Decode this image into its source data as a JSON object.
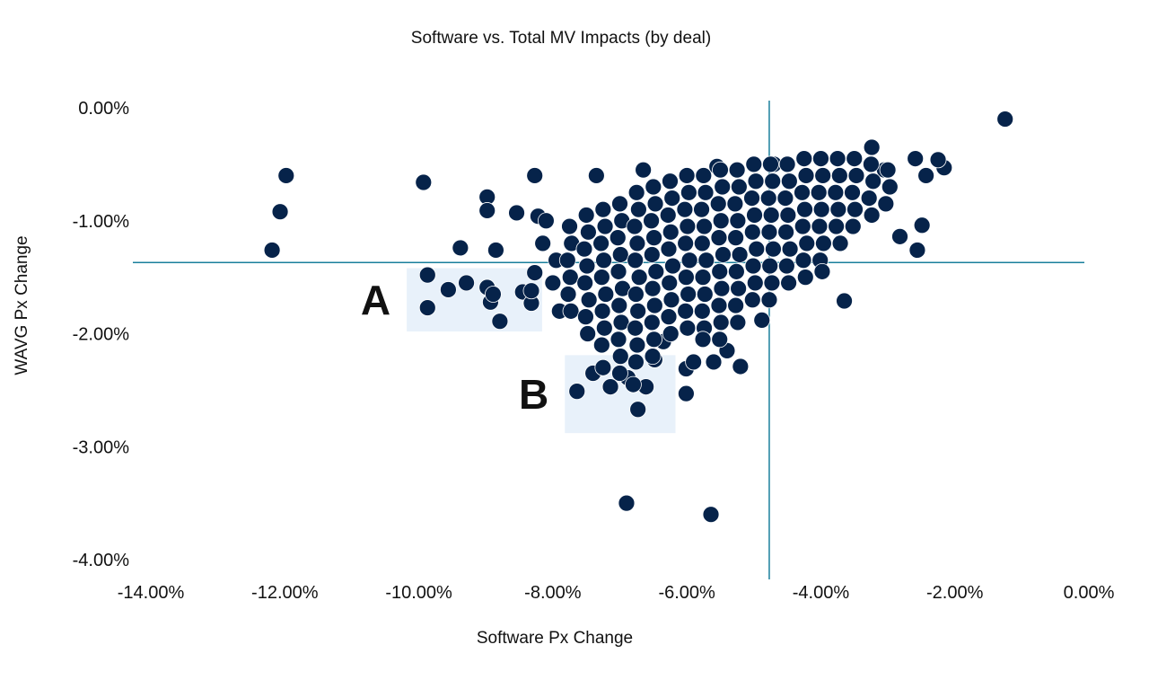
{
  "chart_data": {
    "type": "scatter",
    "title": "Software vs. Total MV Impacts (by deal)",
    "xlabel": "Software Px Change",
    "ylabel": "WAVG Px Change",
    "xlim": [
      -14,
      0
    ],
    "ylim": [
      -4,
      0
    ],
    "x_ticks": [
      "-14.00%",
      "-12.00%",
      "-10.00%",
      "-8.00%",
      "-6.00%",
      "-4.00%",
      "-2.00%",
      "0.00%"
    ],
    "x_tick_values": [
      -14,
      -12,
      -10,
      -8,
      -6,
      -4,
      -2,
      0
    ],
    "y_ticks": [
      "0.00%",
      "-1.00%",
      "-2.00%",
      "-3.00%",
      "-4.00%"
    ],
    "y_tick_values": [
      0,
      -1,
      -2,
      -3,
      -4
    ],
    "grid": false,
    "reference_lines": {
      "x": -4.77,
      "y": -1.37
    },
    "highlight_boxes": [
      {
        "label": "A",
        "x_range": [
          -10.18,
          -8.16
        ],
        "y_range": [
          -1.98,
          -1.42
        ]
      },
      {
        "label": "B",
        "x_range": [
          -7.82,
          -6.17
        ],
        "y_range": [
          -2.88,
          -2.19
        ]
      }
    ],
    "colors": {
      "points": "#06234a",
      "point_outline": "#ffffff",
      "reference_lines": "#1a7f9c",
      "boxes": "#e8f1fa"
    },
    "points": [
      [
        -11.98,
        -0.6
      ],
      [
        -12.07,
        -0.92
      ],
      [
        -12.19,
        -1.26
      ],
      [
        -9.93,
        -0.66
      ],
      [
        -9.87,
        -1.48
      ],
      [
        -9.87,
        -1.77
      ],
      [
        -9.56,
        -1.61
      ],
      [
        -9.38,
        -1.24
      ],
      [
        -9.29,
        -1.55
      ],
      [
        -8.98,
        -0.79
      ],
      [
        -8.98,
        -0.91
      ],
      [
        -8.98,
        -1.59
      ],
      [
        -8.93,
        -1.72
      ],
      [
        -8.89,
        -1.65
      ],
      [
        -8.85,
        -1.26
      ],
      [
        -8.79,
        -1.89
      ],
      [
        -8.54,
        -0.93
      ],
      [
        -8.45,
        -1.63
      ],
      [
        -8.32,
        -1.73
      ],
      [
        -8.32,
        -1.62
      ],
      [
        -8.27,
        -0.6
      ],
      [
        -8.22,
        -0.96
      ],
      [
        -8.27,
        -1.46
      ],
      [
        -7.64,
        -2.51
      ],
      [
        -6.9,
        -3.5
      ],
      [
        -5.64,
        -3.6
      ],
      [
        -6.73,
        -2.67
      ],
      [
        -1.25,
        -0.1
      ],
      [
        -3.65,
        -1.71
      ],
      [
        -4.88,
        -1.88
      ],
      [
        -2.56,
        -1.26
      ],
      [
        -2.49,
        -1.04
      ],
      [
        -2.82,
        -1.14
      ],
      [
        -2.16,
        -0.53
      ],
      [
        -2.25,
        -0.46
      ],
      [
        -2.43,
        -0.6
      ],
      [
        -2.59,
        -0.45
      ],
      [
        -3.24,
        -0.35
      ],
      [
        -5.2,
        -2.29
      ],
      [
        -6.01,
        -2.53
      ],
      [
        -6.01,
        -2.31
      ],
      [
        -7.4,
        -2.35
      ],
      [
        -7.14,
        -2.47
      ],
      [
        -6.88,
        -2.39
      ],
      [
        -6.61,
        -2.47
      ],
      [
        -6.48,
        -2.23
      ],
      [
        -6.35,
        -2.07
      ],
      [
        -8.1,
        -1.0
      ],
      [
        -7.95,
        -1.35
      ],
      [
        -8.0,
        -1.55
      ],
      [
        -7.9,
        -1.8
      ],
      [
        -8.15,
        -1.2
      ],
      [
        -7.0,
        -2.35
      ],
      [
        -6.8,
        -2.45
      ],
      [
        -7.25,
        -2.3
      ],
      [
        -5.9,
        -2.25
      ],
      [
        -5.6,
        -2.25
      ],
      [
        -5.4,
        -2.15
      ],
      [
        -7.35,
        -0.6
      ],
      [
        -6.65,
        -0.55
      ],
      [
        -5.55,
        -0.52
      ],
      [
        -4.7,
        -0.5
      ],
      [
        -3.05,
        -0.55
      ],
      [
        -7.75,
        -1.05
      ],
      [
        -7.72,
        -1.2
      ],
      [
        -7.78,
        -1.35
      ],
      [
        -7.74,
        -1.5
      ],
      [
        -7.77,
        -1.65
      ],
      [
        -7.73,
        -1.8
      ],
      [
        -7.5,
        -0.95
      ],
      [
        -7.47,
        -1.1
      ],
      [
        -7.53,
        -1.25
      ],
      [
        -7.49,
        -1.4
      ],
      [
        -7.52,
        -1.55
      ],
      [
        -7.46,
        -1.7
      ],
      [
        -7.51,
        -1.85
      ],
      [
        -7.48,
        -2.0
      ],
      [
        -7.25,
        -0.9
      ],
      [
        -7.22,
        -1.05
      ],
      [
        -7.28,
        -1.2
      ],
      [
        -7.24,
        -1.35
      ],
      [
        -7.27,
        -1.5
      ],
      [
        -7.21,
        -1.65
      ],
      [
        -7.26,
        -1.8
      ],
      [
        -7.23,
        -1.95
      ],
      [
        -7.27,
        -2.1
      ],
      [
        -7.0,
        -0.85
      ],
      [
        -6.97,
        -1.0
      ],
      [
        -7.03,
        -1.15
      ],
      [
        -6.99,
        -1.3
      ],
      [
        -7.02,
        -1.45
      ],
      [
        -6.96,
        -1.6
      ],
      [
        -7.01,
        -1.75
      ],
      [
        -6.98,
        -1.9
      ],
      [
        -7.02,
        -2.05
      ],
      [
        -6.99,
        -2.2
      ],
      [
        -6.75,
        -0.75
      ],
      [
        -6.72,
        -0.9
      ],
      [
        -6.78,
        -1.05
      ],
      [
        -6.74,
        -1.2
      ],
      [
        -6.77,
        -1.35
      ],
      [
        -6.71,
        -1.5
      ],
      [
        -6.76,
        -1.65
      ],
      [
        -6.73,
        -1.8
      ],
      [
        -6.77,
        -1.95
      ],
      [
        -6.74,
        -2.1
      ],
      [
        -6.76,
        -2.25
      ],
      [
        -6.5,
        -0.7
      ],
      [
        -6.47,
        -0.85
      ],
      [
        -6.53,
        -1.0
      ],
      [
        -6.49,
        -1.15
      ],
      [
        -6.52,
        -1.3
      ],
      [
        -6.46,
        -1.45
      ],
      [
        -6.51,
        -1.6
      ],
      [
        -6.48,
        -1.75
      ],
      [
        -6.52,
        -1.9
      ],
      [
        -6.49,
        -2.05
      ],
      [
        -6.51,
        -2.2
      ],
      [
        -6.25,
        -0.65
      ],
      [
        -6.22,
        -0.8
      ],
      [
        -6.28,
        -0.95
      ],
      [
        -6.24,
        -1.1
      ],
      [
        -6.27,
        -1.25
      ],
      [
        -6.21,
        -1.4
      ],
      [
        -6.26,
        -1.55
      ],
      [
        -6.23,
        -1.7
      ],
      [
        -6.27,
        -1.85
      ],
      [
        -6.24,
        -2.0
      ],
      [
        -6.0,
        -0.6
      ],
      [
        -5.97,
        -0.75
      ],
      [
        -6.03,
        -0.9
      ],
      [
        -5.99,
        -1.05
      ],
      [
        -6.02,
        -1.2
      ],
      [
        -5.96,
        -1.35
      ],
      [
        -6.01,
        -1.5
      ],
      [
        -5.98,
        -1.65
      ],
      [
        -6.02,
        -1.8
      ],
      [
        -5.99,
        -1.95
      ],
      [
        -5.75,
        -0.6
      ],
      [
        -5.72,
        -0.75
      ],
      [
        -5.78,
        -0.9
      ],
      [
        -5.74,
        -1.05
      ],
      [
        -5.77,
        -1.2
      ],
      [
        -5.71,
        -1.35
      ],
      [
        -5.76,
        -1.5
      ],
      [
        -5.73,
        -1.65
      ],
      [
        -5.77,
        -1.8
      ],
      [
        -5.74,
        -1.95
      ],
      [
        -5.76,
        -2.05
      ],
      [
        -5.5,
        -0.55
      ],
      [
        -5.47,
        -0.7
      ],
      [
        -5.53,
        -0.85
      ],
      [
        -5.49,
        -1.0
      ],
      [
        -5.52,
        -1.15
      ],
      [
        -5.46,
        -1.3
      ],
      [
        -5.51,
        -1.45
      ],
      [
        -5.48,
        -1.6
      ],
      [
        -5.52,
        -1.75
      ],
      [
        -5.49,
        -1.9
      ],
      [
        -5.51,
        -2.05
      ],
      [
        -5.25,
        -0.55
      ],
      [
        -5.22,
        -0.7
      ],
      [
        -5.28,
        -0.85
      ],
      [
        -5.24,
        -1.0
      ],
      [
        -5.27,
        -1.15
      ],
      [
        -5.21,
        -1.3
      ],
      [
        -5.26,
        -1.45
      ],
      [
        -5.23,
        -1.6
      ],
      [
        -5.27,
        -1.75
      ],
      [
        -5.24,
        -1.9
      ],
      [
        -5.0,
        -0.5
      ],
      [
        -4.97,
        -0.65
      ],
      [
        -5.03,
        -0.8
      ],
      [
        -4.99,
        -0.95
      ],
      [
        -5.02,
        -1.1
      ],
      [
        -4.96,
        -1.25
      ],
      [
        -5.01,
        -1.4
      ],
      [
        -4.98,
        -1.55
      ],
      [
        -5.02,
        -1.7
      ],
      [
        -4.75,
        -0.5
      ],
      [
        -4.72,
        -0.65
      ],
      [
        -4.78,
        -0.8
      ],
      [
        -4.74,
        -0.95
      ],
      [
        -4.77,
        -1.1
      ],
      [
        -4.71,
        -1.25
      ],
      [
        -4.76,
        -1.4
      ],
      [
        -4.73,
        -1.55
      ],
      [
        -4.77,
        -1.7
      ],
      [
        -4.5,
        -0.5
      ],
      [
        -4.47,
        -0.65
      ],
      [
        -4.53,
        -0.8
      ],
      [
        -4.49,
        -0.95
      ],
      [
        -4.52,
        -1.1
      ],
      [
        -4.46,
        -1.25
      ],
      [
        -4.51,
        -1.4
      ],
      [
        -4.48,
        -1.55
      ],
      [
        -4.25,
        -0.45
      ],
      [
        -4.22,
        -0.6
      ],
      [
        -4.28,
        -0.75
      ],
      [
        -4.24,
        -0.9
      ],
      [
        -4.27,
        -1.05
      ],
      [
        -4.21,
        -1.2
      ],
      [
        -4.26,
        -1.35
      ],
      [
        -4.23,
        -1.5
      ],
      [
        -4.0,
        -0.45
      ],
      [
        -3.97,
        -0.6
      ],
      [
        -4.03,
        -0.75
      ],
      [
        -3.99,
        -0.9
      ],
      [
        -4.02,
        -1.05
      ],
      [
        -3.96,
        -1.2
      ],
      [
        -4.01,
        -1.35
      ],
      [
        -3.98,
        -1.45
      ],
      [
        -3.75,
        -0.45
      ],
      [
        -3.72,
        -0.6
      ],
      [
        -3.78,
        -0.75
      ],
      [
        -3.74,
        -0.9
      ],
      [
        -3.77,
        -1.05
      ],
      [
        -3.71,
        -1.2
      ],
      [
        -3.5,
        -0.45
      ],
      [
        -3.47,
        -0.6
      ],
      [
        -3.53,
        -0.75
      ],
      [
        -3.49,
        -0.9
      ],
      [
        -3.52,
        -1.05
      ],
      [
        -3.25,
        -0.5
      ],
      [
        -3.22,
        -0.65
      ],
      [
        -3.28,
        -0.8
      ],
      [
        -3.24,
        -0.95
      ],
      [
        -3.0,
        -0.55
      ],
      [
        -2.97,
        -0.7
      ],
      [
        -3.03,
        -0.85
      ]
    ]
  }
}
